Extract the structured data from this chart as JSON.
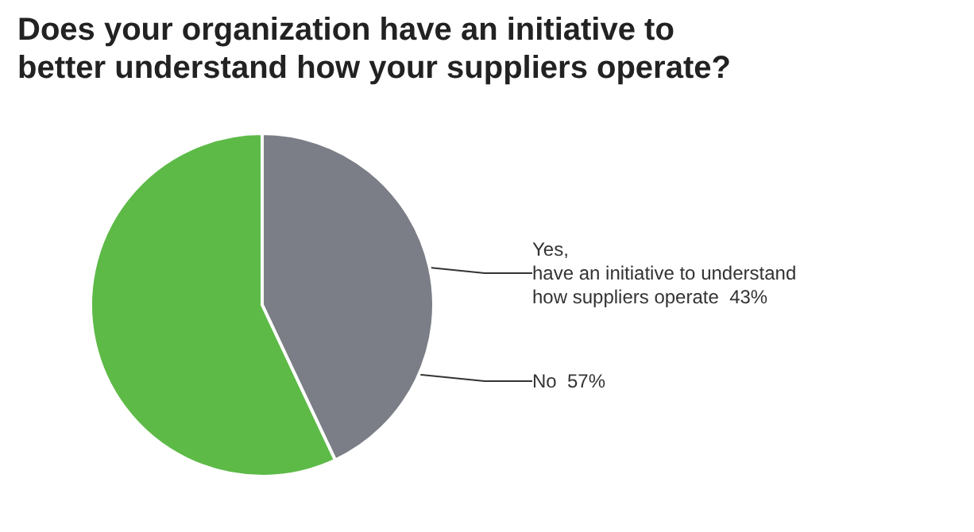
{
  "chart_data": {
    "type": "pie",
    "title": "Does your organization have an initiative to\nbetter understand how your suppliers operate?",
    "categories": [
      "Yes,\nhave an initiative to understand\nhow suppliers operate",
      "No"
    ],
    "values": [
      43,
      57
    ],
    "colors": [
      "#7b7e86",
      "#5dba47"
    ],
    "value_labels": [
      "43%",
      "57%"
    ],
    "legend": false
  }
}
